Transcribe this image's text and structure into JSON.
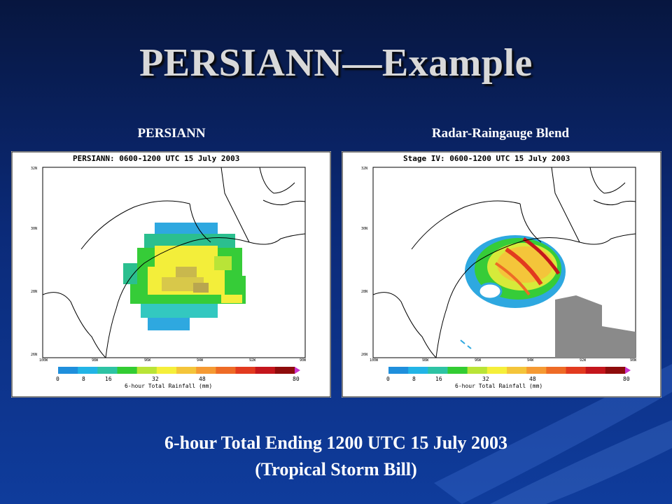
{
  "slide": {
    "title": "PERSIANN—Example"
  },
  "panels": [
    {
      "label": "PERSIANN",
      "header": "PERSIANN:  0600-1200 UTC 15 July 2003",
      "y_ticks": [
        "32N",
        "30N",
        "28N",
        "26N"
      ],
      "x_ticks": [
        "100W",
        "98W",
        "96W",
        "94W",
        "92W",
        "90W"
      ]
    },
    {
      "label": "Radar-Raingauge Blend",
      "header": "Stage IV:  0600-1200 UTC 15 July 2003",
      "y_ticks": [
        "32N",
        "30N",
        "28N",
        "26N"
      ],
      "x_ticks": [
        "100W",
        "98W",
        "96W",
        "94W",
        "92W",
        "90W"
      ]
    }
  ],
  "colorbar": {
    "ticks": [
      "0",
      "8",
      "16",
      "32",
      "48",
      "80"
    ],
    "label": "6-hour Total Rainfall (mm)",
    "colors": [
      "#1f8fdc",
      "#22b4e6",
      "#2ec3a4",
      "#33cc33",
      "#b9e437",
      "#f5ef3a",
      "#f4c53a",
      "#f59a33",
      "#ee6b26",
      "#e23a1f",
      "#c4161c",
      "#8e0c0c",
      "#cc33cc"
    ]
  },
  "caption": {
    "line1": "6-hour Total Ending 1200 UTC 15 July 2003",
    "line2": "(Tropical Storm Bill)"
  }
}
